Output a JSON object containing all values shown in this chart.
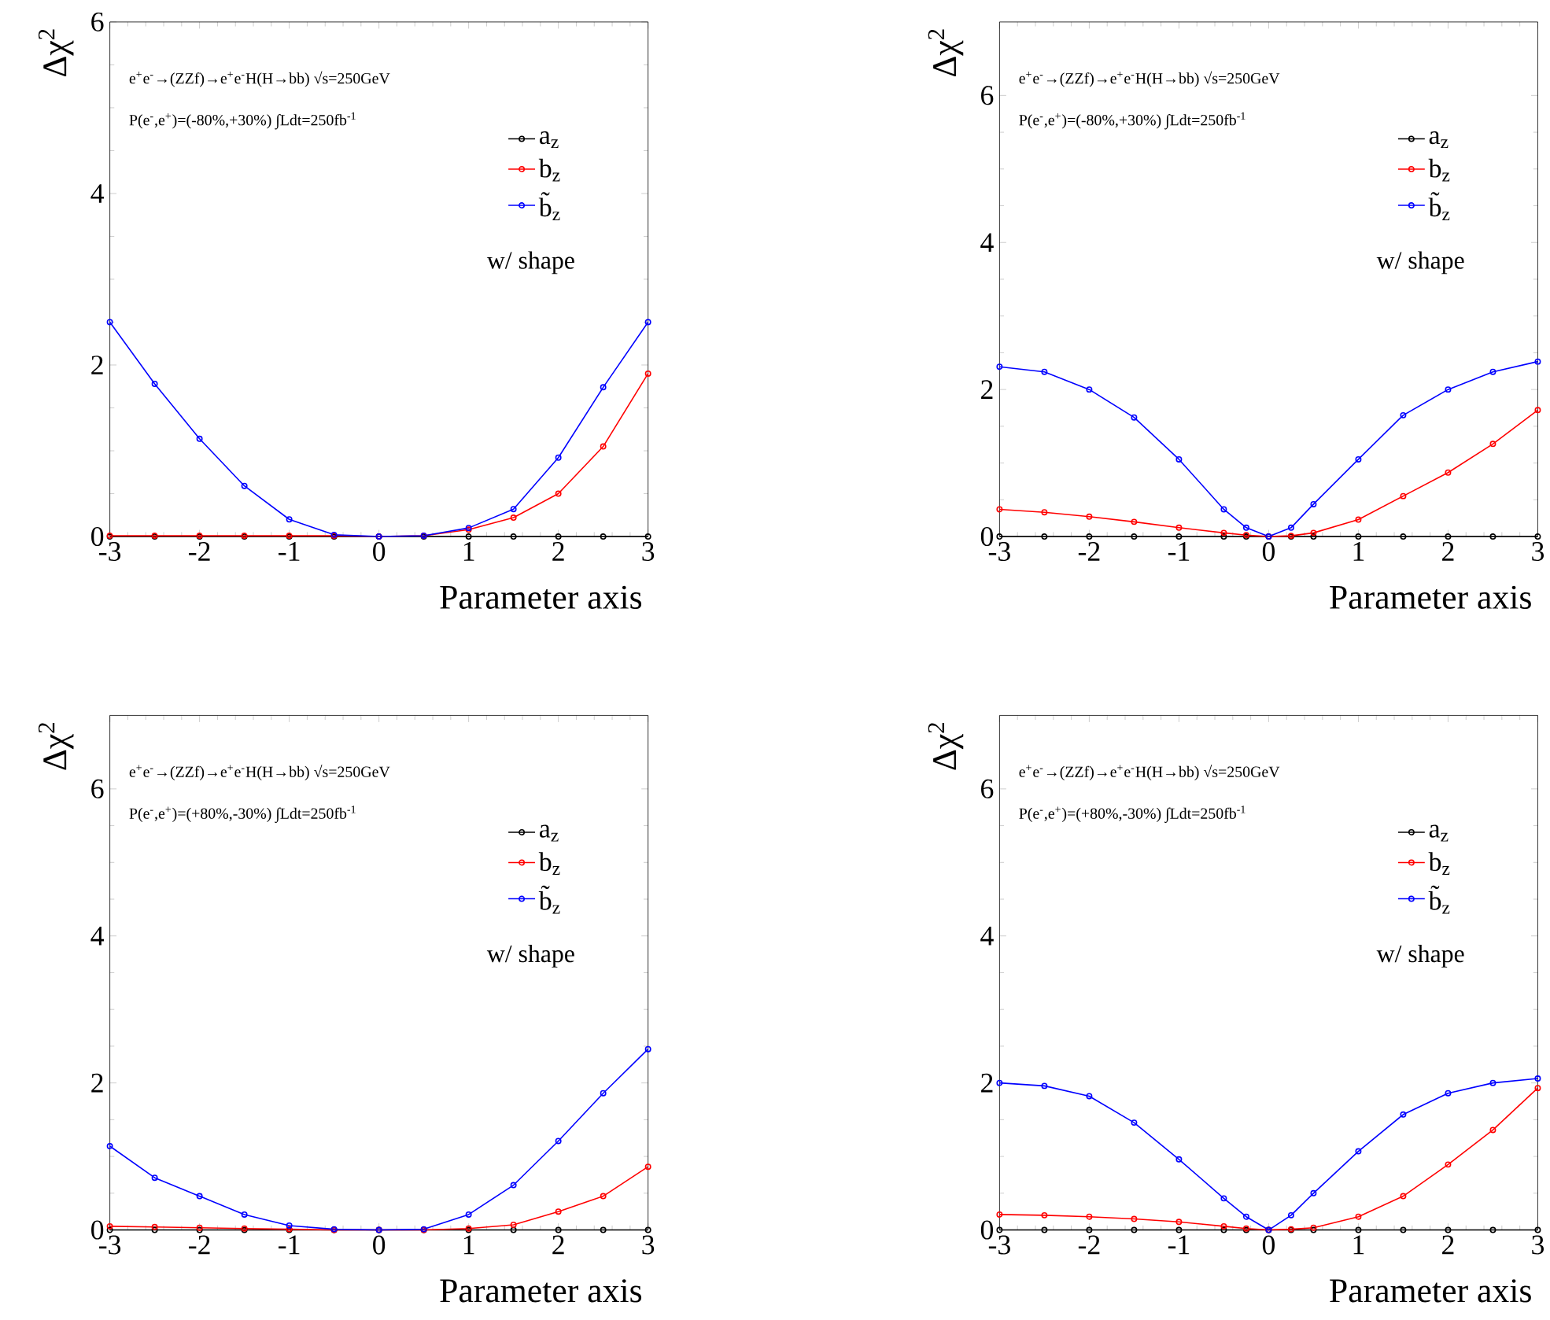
{
  "chart_data": [
    {
      "type": "line",
      "xlabel": "Parameter axis",
      "ylabel": "Δχ$^{2}$",
      "xlim": [
        -3,
        3
      ],
      "ylim": [
        0,
        6
      ],
      "xticks": [
        -3,
        -2,
        -1,
        0,
        1,
        2,
        3
      ],
      "yticks": [
        0,
        2,
        4,
        6
      ],
      "marker": "circle",
      "line_style": "solid",
      "legend": "top right",
      "annotations": [
        "e$^{+}$e$^{-}$→(ZZf)→e$^{+}$e$^{-}$H(H→bb)  √s=250GeV",
        "P(e$^{-}$,e$^{+}$)=(-80%,+30%) ∫Ldt=250fb$^{-1}$",
        "w/ shape"
      ],
      "x": [
        -3,
        -2.5,
        -2,
        -1.5,
        -1,
        -0.5,
        0,
        0.5,
        1,
        1.5,
        2,
        2.5,
        3
      ],
      "series": [
        {
          "name": "a$_{z}$",
          "color": "#000000",
          "values": [
            0,
            0,
            0,
            0,
            0,
            0,
            0,
            0,
            0,
            0,
            0,
            0,
            0
          ]
        },
        {
          "name": "b$_{z}$",
          "color": "#ff0000",
          "values": [
            0.01,
            0.01,
            0.01,
            0.01,
            0.01,
            0.01,
            0,
            0.01,
            0.08,
            0.22,
            0.5,
            1.05,
            1.9
          ]
        },
        {
          "name": "b̃$_{z}$",
          "color": "#0000ff",
          "values": [
            2.5,
            1.78,
            1.14,
            0.59,
            0.2,
            0.02,
            0,
            0.01,
            0.1,
            0.32,
            0.92,
            1.74,
            2.5
          ]
        }
      ]
    },
    {
      "type": "line",
      "xlabel": "Parameter axis",
      "ylabel": "Δχ$^{2}$",
      "xlim": [
        -3,
        3
      ],
      "ylim": [
        0,
        7
      ],
      "xticks": [
        -3,
        -2,
        -1,
        0,
        1,
        2,
        3
      ],
      "yticks": [
        0,
        2,
        4,
        6
      ],
      "marker": "circle",
      "line_style": "solid",
      "legend": "top right",
      "annotations": [
        "e$^{+}$e$^{-}$→(ZZf)→e$^{+}$e$^{-}$H(H→bb)  √s=250GeV",
        "P(e$^{-}$,e$^{+}$)=(-80%,+30%) ∫Ldt=250fb$^{-1}$",
        "w/ shape"
      ],
      "x": [
        -3,
        -2.5,
        -2,
        -1.5,
        -1,
        -0.5,
        -0.25,
        0,
        0.25,
        0.5,
        1,
        1.5,
        2,
        2.5,
        3
      ],
      "series": [
        {
          "name": "a$_{z}$",
          "color": "#000000",
          "values": [
            0,
            0,
            0,
            0,
            0,
            0,
            0,
            0,
            0,
            0,
            0,
            0,
            0,
            0,
            0
          ]
        },
        {
          "name": "b$_{z}$",
          "color": "#ff0000",
          "values": [
            0.37,
            0.33,
            0.27,
            0.2,
            0.12,
            0.05,
            0.02,
            0,
            0.01,
            0.05,
            0.23,
            0.55,
            0.87,
            1.26,
            1.72
          ]
        },
        {
          "name": "b̃$_{z}$",
          "color": "#0000ff",
          "values": [
            2.31,
            2.24,
            2.0,
            1.62,
            1.05,
            0.37,
            0.12,
            0,
            0.12,
            0.44,
            1.05,
            1.65,
            2.0,
            2.24,
            2.38
          ]
        }
      ]
    },
    {
      "type": "line",
      "xlabel": "Parameter axis",
      "ylabel": "Δχ$^{2}$",
      "xlim": [
        -3,
        3
      ],
      "ylim": [
        0,
        7
      ],
      "xticks": [
        -3,
        -2,
        -1,
        0,
        1,
        2,
        3
      ],
      "yticks": [
        0,
        2,
        4,
        6
      ],
      "marker": "circle",
      "line_style": "solid",
      "legend": "top right",
      "annotations": [
        "e$^{+}$e$^{-}$→(ZZf)→e$^{+}$e$^{-}$H(H→bb)  √s=250GeV",
        "P(e$^{-}$,e$^{+}$)=(+80%,-30%) ∫Ldt=250fb$^{-1}$",
        "w/ shape"
      ],
      "x": [
        -3,
        -2.5,
        -2,
        -1.5,
        -1,
        -0.5,
        0,
        0.5,
        1,
        1.5,
        2,
        2.5,
        3
      ],
      "series": [
        {
          "name": "a$_{z}$",
          "color": "#000000",
          "values": [
            0,
            0,
            0,
            0,
            0,
            0,
            0,
            0,
            0,
            0,
            0,
            0,
            0
          ]
        },
        {
          "name": "b$_{z}$",
          "color": "#ff0000",
          "values": [
            0.05,
            0.04,
            0.03,
            0.02,
            0.01,
            0,
            0,
            0,
            0.02,
            0.07,
            0.25,
            0.46,
            0.86
          ]
        },
        {
          "name": "b̃$_{z}$",
          "color": "#0000ff",
          "values": [
            1.14,
            0.71,
            0.46,
            0.21,
            0.06,
            0.01,
            0,
            0.01,
            0.21,
            0.61,
            1.21,
            1.86,
            2.46
          ]
        }
      ]
    },
    {
      "type": "line",
      "xlabel": "Parameter axis",
      "ylabel": "Δχ$^{2}$",
      "xlim": [
        -3,
        3
      ],
      "ylim": [
        0,
        7
      ],
      "xticks": [
        -3,
        -2,
        -1,
        0,
        1,
        2,
        3
      ],
      "yticks": [
        0,
        2,
        4,
        6
      ],
      "marker": "circle",
      "line_style": "solid",
      "legend": "top right",
      "annotations": [
        "e$^{+}$e$^{-}$→(ZZf)→e$^{+}$e$^{-}$H(H→bb)  √s=250GeV",
        "P(e$^{-}$,e$^{+}$)=(+80%,-30%) ∫Ldt=250fb$^{-1}$",
        "w/ shape"
      ],
      "x": [
        -3,
        -2.5,
        -2,
        -1.5,
        -1,
        -0.5,
        -0.25,
        0,
        0.25,
        0.5,
        1,
        1.5,
        2,
        2.5,
        3
      ],
      "series": [
        {
          "name": "a$_{z}$",
          "color": "#000000",
          "values": [
            0,
            0,
            0,
            0,
            0,
            0,
            0,
            0,
            0,
            0,
            0,
            0,
            0,
            0,
            0
          ]
        },
        {
          "name": "b$_{z}$",
          "color": "#ff0000",
          "values": [
            0.21,
            0.2,
            0.18,
            0.15,
            0.11,
            0.05,
            0.02,
            0,
            0.01,
            0.03,
            0.18,
            0.46,
            0.89,
            1.36,
            1.93
          ]
        },
        {
          "name": "b̃$_{z}$",
          "color": "#0000ff",
          "values": [
            2.0,
            1.96,
            1.82,
            1.46,
            0.96,
            0.43,
            0.18,
            0,
            0.2,
            0.5,
            1.07,
            1.57,
            1.86,
            2.0,
            2.06
          ]
        }
      ]
    }
  ]
}
